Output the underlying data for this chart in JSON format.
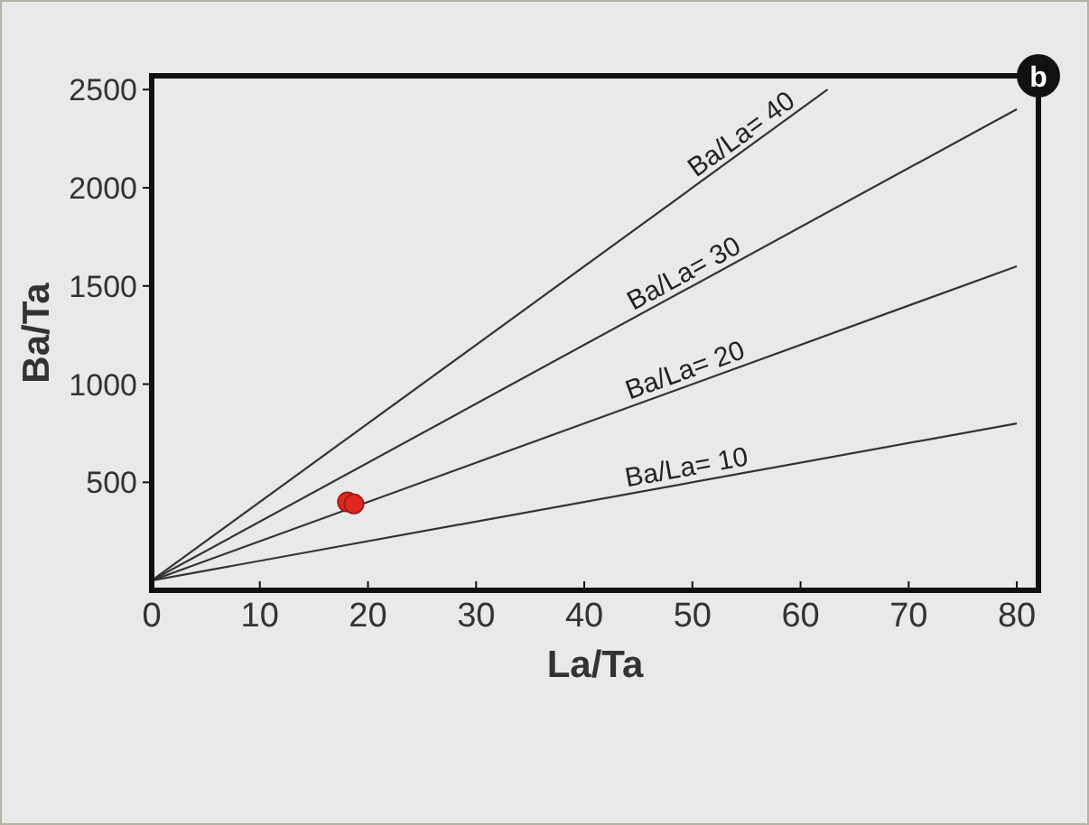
{
  "chart_data": {
    "type": "scatter",
    "xlabel": "La/Ta",
    "ylabel": "Ba/Ta",
    "annotations": [
      "b"
    ],
    "xlim": [
      0,
      82
    ],
    "ylim": [
      -50,
      2570
    ],
    "xticks": [
      0,
      10,
      20,
      30,
      40,
      50,
      60,
      70,
      80
    ],
    "yticks": [
      500,
      1000,
      1500,
      2000,
      2500
    ],
    "grid": false,
    "series": [
      {
        "name": "Ba/La= 10",
        "type": "line",
        "color": "#333333",
        "x": [
          0,
          80
        ],
        "values": [
          0,
          800
        ]
      },
      {
        "name": "Ba/La= 20",
        "type": "line",
        "color": "#333333",
        "x": [
          0,
          80
        ],
        "values": [
          0,
          1600
        ]
      },
      {
        "name": "Ba/La= 30",
        "type": "line",
        "color": "#333333",
        "x": [
          0,
          80
        ],
        "values": [
          0,
          2400
        ]
      },
      {
        "name": "Ba/La= 40",
        "type": "line",
        "color": "#333333",
        "x": [
          0,
          62.5
        ],
        "values": [
          0,
          2500
        ]
      },
      {
        "marker": "circle",
        "color": "#e0281e",
        "x": [
          18.1,
          18.7
        ],
        "values": [
          400,
          390
        ]
      }
    ]
  }
}
